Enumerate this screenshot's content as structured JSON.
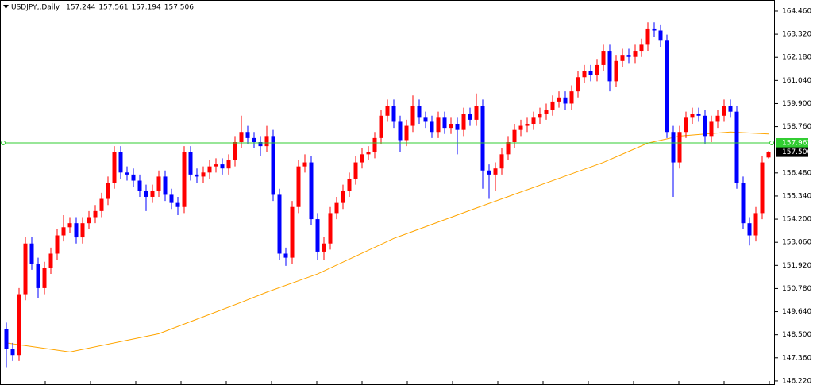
{
  "chart_data": {
    "type": "candlestick",
    "title": "USDJPY,,Daily",
    "up_color": "#ff0000",
    "down_color": "#0000ff",
    "ylim": [
      146.06,
      164.89
    ],
    "yticks": [
      {
        "value": 164.46,
        "label": "164.460"
      },
      {
        "value": 163.32,
        "label": "163.320"
      },
      {
        "value": 162.18,
        "label": "162.180"
      },
      {
        "value": 161.04,
        "label": "161.040"
      },
      {
        "value": 159.9,
        "label": "159.900"
      },
      {
        "value": 158.76,
        "label": "158.760"
      },
      {
        "value": 156.48,
        "label": "156.480"
      },
      {
        "value": 155.34,
        "label": "155.340"
      },
      {
        "value": 154.2,
        "label": "154.200"
      },
      {
        "value": 153.06,
        "label": "153.060"
      },
      {
        "value": 151.92,
        "label": "151.920"
      },
      {
        "value": 150.78,
        "label": "150.780"
      },
      {
        "value": 149.64,
        "label": "149.640"
      },
      {
        "value": 148.5,
        "label": "148.500"
      },
      {
        "value": 147.36,
        "label": "147.360"
      },
      {
        "value": 146.22,
        "label": "146.220"
      }
    ],
    "candles": [
      [
        148.8,
        149.1,
        146.9,
        147.8
      ],
      [
        147.8,
        148.1,
        147.2,
        147.5
      ],
      [
        147.5,
        150.8,
        147.2,
        150.5
      ],
      [
        150.5,
        153.3,
        150.2,
        153.0
      ],
      [
        153.0,
        153.3,
        151.7,
        152.0
      ],
      [
        152.0,
        152.3,
        150.3,
        150.8
      ],
      [
        150.8,
        152.1,
        150.5,
        151.8
      ],
      [
        151.8,
        152.8,
        151.5,
        152.5
      ],
      [
        152.5,
        153.7,
        152.2,
        153.4
      ],
      [
        153.4,
        154.4,
        153.1,
        153.8
      ],
      [
        153.8,
        154.3,
        153.5,
        154.0
      ],
      [
        154.0,
        154.3,
        153.0,
        153.3
      ],
      [
        153.3,
        154.3,
        153.0,
        154.0
      ],
      [
        154.0,
        154.6,
        153.7,
        154.3
      ],
      [
        154.3,
        154.9,
        154.0,
        154.6
      ],
      [
        154.6,
        155.5,
        154.3,
        155.2
      ],
      [
        155.2,
        156.3,
        154.9,
        156.0
      ],
      [
        156.0,
        157.8,
        155.7,
        157.5
      ],
      [
        157.5,
        157.8,
        156.2,
        156.5
      ],
      [
        156.5,
        156.8,
        156.1,
        156.4
      ],
      [
        156.4,
        156.7,
        155.8,
        156.1
      ],
      [
        156.1,
        156.4,
        155.3,
        155.6
      ],
      [
        155.6,
        155.9,
        154.6,
        155.3
      ],
      [
        155.3,
        155.9,
        155.0,
        155.6
      ],
      [
        155.6,
        156.6,
        155.3,
        156.3
      ],
      [
        156.3,
        156.6,
        155.1,
        155.4
      ],
      [
        155.4,
        155.7,
        154.7,
        155.0
      ],
      [
        155.0,
        155.3,
        154.4,
        154.8
      ],
      [
        154.8,
        157.8,
        154.5,
        157.5
      ],
      [
        157.5,
        157.8,
        156.1,
        156.4
      ],
      [
        156.4,
        156.7,
        156.0,
        156.3
      ],
      [
        156.3,
        156.8,
        156.0,
        156.5
      ],
      [
        156.5,
        157.1,
        156.2,
        156.8
      ],
      [
        156.8,
        157.2,
        156.5,
        156.9
      ],
      [
        156.9,
        157.2,
        156.4,
        156.7
      ],
      [
        156.7,
        157.4,
        156.4,
        157.1
      ],
      [
        157.1,
        158.3,
        156.8,
        158.0
      ],
      [
        158.0,
        159.3,
        157.7,
        158.5
      ],
      [
        158.5,
        158.8,
        157.9,
        158.2
      ],
      [
        158.2,
        158.5,
        157.7,
        158.0
      ],
      [
        158.0,
        158.3,
        157.3,
        157.8
      ],
      [
        157.8,
        158.8,
        157.5,
        158.3
      ],
      [
        158.3,
        158.6,
        155.1,
        155.4
      ],
      [
        155.4,
        155.7,
        152.2,
        152.5
      ],
      [
        152.5,
        152.8,
        151.9,
        152.3
      ],
      [
        152.3,
        155.1,
        152.0,
        154.8
      ],
      [
        154.8,
        157.1,
        154.5,
        156.8
      ],
      [
        156.8,
        157.4,
        156.5,
        157.0
      ],
      [
        157.0,
        157.3,
        153.9,
        154.2
      ],
      [
        154.2,
        154.5,
        152.2,
        152.6
      ],
      [
        152.6,
        153.3,
        152.2,
        153.0
      ],
      [
        153.0,
        154.8,
        152.7,
        154.5
      ],
      [
        154.5,
        155.3,
        154.2,
        155.0
      ],
      [
        155.0,
        155.9,
        154.7,
        155.6
      ],
      [
        155.6,
        156.5,
        155.3,
        156.2
      ],
      [
        156.2,
        157.3,
        155.9,
        157.0
      ],
      [
        157.0,
        157.7,
        156.7,
        157.4
      ],
      [
        157.4,
        157.8,
        157.1,
        157.5
      ],
      [
        157.5,
        158.5,
        157.2,
        158.2
      ],
      [
        158.2,
        159.6,
        157.9,
        159.3
      ],
      [
        159.3,
        160.1,
        159.0,
        159.8
      ],
      [
        159.8,
        160.1,
        158.7,
        159.0
      ],
      [
        159.0,
        159.3,
        157.5,
        158.1
      ],
      [
        158.1,
        159.1,
        157.8,
        158.8
      ],
      [
        158.8,
        160.3,
        158.5,
        159.8
      ],
      [
        159.8,
        160.1,
        158.9,
        159.2
      ],
      [
        159.2,
        159.5,
        158.7,
        159.0
      ],
      [
        159.0,
        159.3,
        158.2,
        158.5
      ],
      [
        158.5,
        159.5,
        158.2,
        159.2
      ],
      [
        159.2,
        159.5,
        158.4,
        158.7
      ],
      [
        158.7,
        159.2,
        158.4,
        158.9
      ],
      [
        158.9,
        159.2,
        157.4,
        158.6
      ],
      [
        158.6,
        159.7,
        158.3,
        159.4
      ],
      [
        159.4,
        159.7,
        158.8,
        159.1
      ],
      [
        159.1,
        160.4,
        158.8,
        159.8
      ],
      [
        159.8,
        160.1,
        155.7,
        156.6
      ],
      [
        156.6,
        156.9,
        155.2,
        156.4
      ],
      [
        156.4,
        157.0,
        155.6,
        156.7
      ],
      [
        156.7,
        157.7,
        156.4,
        157.4
      ],
      [
        157.4,
        158.3,
        157.1,
        158.0
      ],
      [
        158.0,
        158.9,
        157.7,
        158.6
      ],
      [
        158.6,
        159.1,
        158.3,
        158.8
      ],
      [
        158.8,
        159.2,
        158.5,
        158.9
      ],
      [
        158.9,
        159.5,
        158.6,
        159.2
      ],
      [
        159.2,
        159.7,
        158.9,
        159.4
      ],
      [
        159.4,
        159.9,
        159.1,
        159.6
      ],
      [
        159.6,
        160.3,
        159.3,
        160.0
      ],
      [
        160.0,
        160.5,
        159.7,
        160.2
      ],
      [
        160.2,
        160.5,
        159.6,
        159.9
      ],
      [
        159.9,
        160.8,
        159.6,
        160.5
      ],
      [
        160.5,
        161.5,
        160.2,
        161.2
      ],
      [
        161.2,
        161.8,
        160.9,
        161.5
      ],
      [
        161.5,
        161.8,
        161.0,
        161.3
      ],
      [
        161.3,
        162.1,
        161.0,
        161.8
      ],
      [
        161.8,
        162.8,
        161.5,
        162.5
      ],
      [
        162.5,
        162.8,
        160.5,
        161.0
      ],
      [
        161.0,
        162.3,
        160.7,
        162.0
      ],
      [
        162.0,
        162.6,
        161.7,
        162.3
      ],
      [
        162.3,
        162.6,
        161.9,
        162.2
      ],
      [
        162.2,
        162.8,
        161.9,
        162.5
      ],
      [
        162.5,
        163.1,
        162.2,
        162.8
      ],
      [
        162.8,
        163.9,
        162.5,
        163.6
      ],
      [
        163.6,
        163.9,
        163.2,
        163.5
      ],
      [
        163.5,
        163.8,
        162.7,
        163.0
      ],
      [
        163.0,
        163.3,
        158.2,
        158.5
      ],
      [
        158.5,
        158.8,
        155.3,
        157.0
      ],
      [
        157.0,
        158.8,
        156.7,
        158.5
      ],
      [
        158.5,
        159.5,
        158.2,
        159.2
      ],
      [
        159.2,
        159.7,
        158.9,
        159.4
      ],
      [
        159.4,
        159.7,
        159.0,
        159.3
      ],
      [
        159.3,
        159.6,
        157.9,
        158.3
      ],
      [
        158.3,
        159.3,
        158.0,
        159.0
      ],
      [
        159.0,
        159.6,
        158.7,
        159.3
      ],
      [
        159.3,
        160.1,
        159.0,
        159.8
      ],
      [
        159.8,
        160.1,
        159.2,
        159.5
      ],
      [
        159.5,
        159.8,
        155.7,
        156.0
      ],
      [
        156.0,
        156.3,
        153.7,
        154.0
      ],
      [
        154.0,
        154.3,
        152.9,
        153.4
      ],
      [
        153.4,
        154.8,
        153.1,
        154.5
      ],
      [
        154.5,
        157.3,
        154.2,
        157.0
      ],
      [
        157.244,
        157.561,
        157.194,
        157.506
      ]
    ],
    "ma": {
      "color": "#ffa500",
      "x": [
        0,
        10,
        24,
        37,
        41,
        49,
        61,
        74,
        86,
        94,
        101,
        106,
        114,
        120
      ],
      "values": [
        148.1,
        147.65,
        148.55,
        150.1,
        150.6,
        151.5,
        153.25,
        154.75,
        156.1,
        157.0,
        157.95,
        158.3,
        158.5,
        158.4
      ]
    },
    "hline": {
      "value": 157.961,
      "color": "#32cd32"
    }
  }
}
